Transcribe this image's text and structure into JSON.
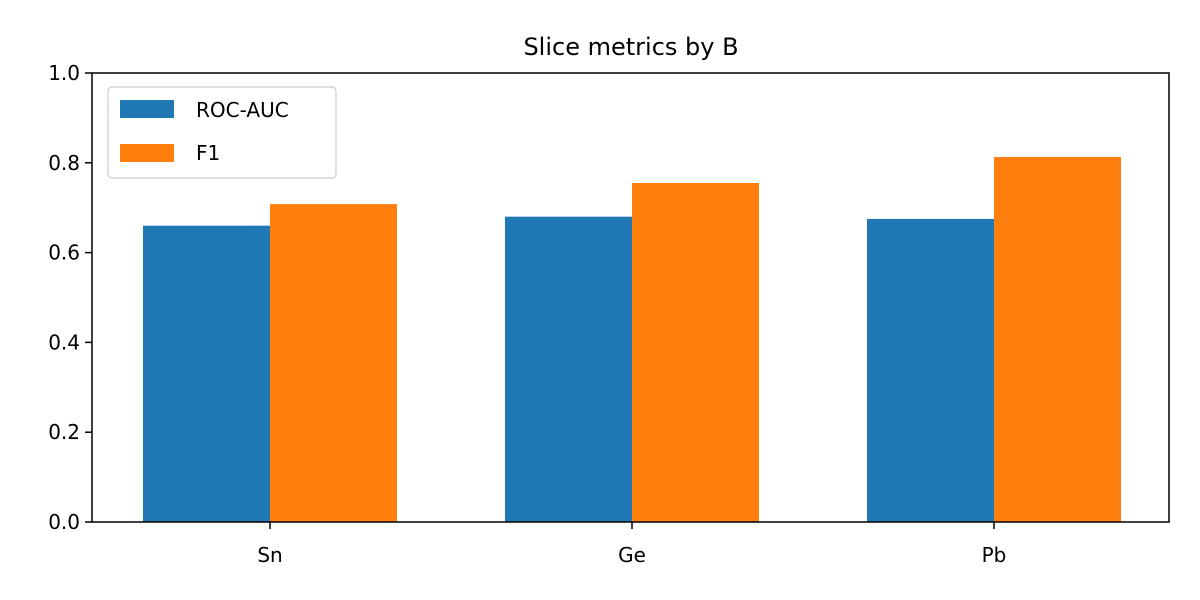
{
  "chart_data": {
    "type": "bar",
    "title": "Slice metrics by B",
    "xlabel": "",
    "ylabel": "",
    "categories": [
      "Sn",
      "Ge",
      "Pb"
    ],
    "series": [
      {
        "name": "ROC-AUC",
        "values": [
          0.66,
          0.68,
          0.675
        ],
        "color": "#1f77b4"
      },
      {
        "name": "F1",
        "values": [
          0.708,
          0.755,
          0.813
        ],
        "color": "#ff7f0e"
      }
    ],
    "ylim": [
      0.0,
      1.0
    ],
    "yticks": [
      "0.0",
      "0.2",
      "0.4",
      "0.6",
      "0.8",
      "1.0"
    ],
    "grid": false,
    "legend_position": "top-left"
  }
}
